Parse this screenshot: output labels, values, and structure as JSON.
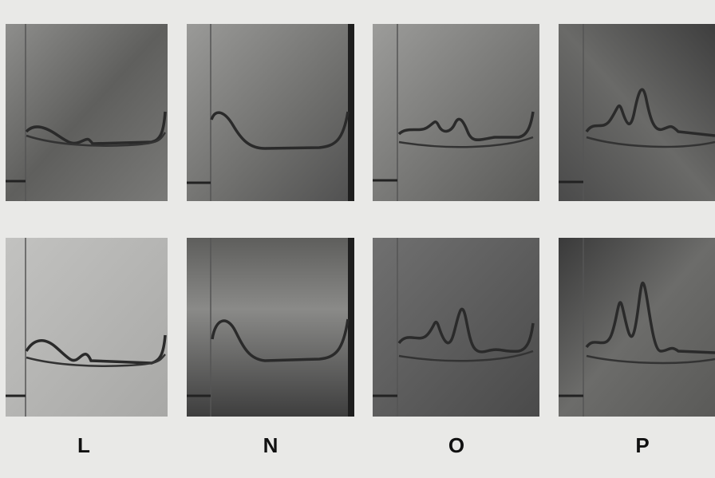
{
  "labels": [
    "L",
    "N",
    "O",
    "P"
  ]
}
